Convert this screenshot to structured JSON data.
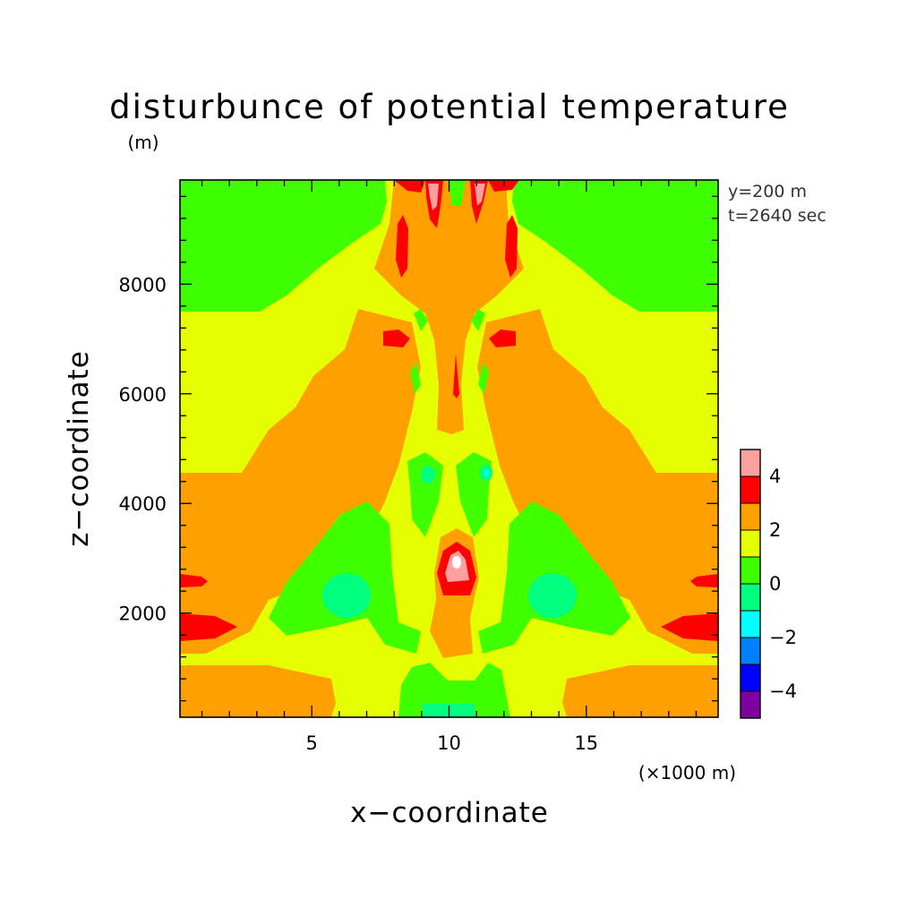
{
  "chart_data": {
    "type": "heatmap",
    "title": "disturbunce of potential temperature",
    "xlabel": "x−coordinate",
    "ylabel": "z−coordinate",
    "x_unit": "(×1000 m)",
    "y_unit": "(m)",
    "xlim": [
      0.2,
      19.8
    ],
    "ylim": [
      100,
      9900
    ],
    "x_ticks": [
      5,
      10,
      15
    ],
    "x_tick_labels": [
      "5",
      "10",
      "15"
    ],
    "y_ticks": [
      2000,
      4000,
      6000,
      8000
    ],
    "y_tick_labels": [
      "2000",
      "4000",
      "6000",
      "8000"
    ],
    "annotations": [
      "y=200 m",
      "t=2640 sec"
    ],
    "colorbar": {
      "levels": [
        -5,
        -4,
        -3,
        -2,
        -1,
        0,
        1,
        2,
        3,
        4,
        5
      ],
      "tick_values": [
        -4,
        -2,
        0,
        2,
        4
      ],
      "tick_labels": [
        "−4",
        "−2",
        "0",
        "2",
        "4"
      ],
      "colors": [
        "#7f00a0",
        "#0000ff",
        "#0080ff",
        "#00ffff",
        "#00ff80",
        "#40ff00",
        "#e6ff00",
        "#ffa000",
        "#ff0000",
        "#ffa0a0"
      ]
    },
    "regions": [
      {
        "name": "upper-left-band",
        "level": 0.5,
        "x": [
          0.2,
          8
        ],
        "z": [
          7500,
          9900
        ]
      },
      {
        "name": "upper-right-band",
        "level": 0.5,
        "x": [
          12,
          19.8
        ],
        "z": [
          7500,
          9900
        ]
      },
      {
        "name": "left-warm-lobe",
        "level": 2.5,
        "x": [
          0.2,
          8
        ],
        "z": [
          1200,
          7100
        ]
      },
      {
        "name": "right-warm-lobe",
        "level": 2.5,
        "x": [
          12,
          19.8
        ],
        "z": [
          1200,
          7100
        ]
      },
      {
        "name": "central-plume",
        "level": 2.5,
        "x": [
          8,
          12
        ],
        "z": [
          5000,
          9900
        ]
      },
      {
        "name": "left-low-cold",
        "level": 0.5,
        "x": [
          3.5,
          9
        ],
        "z": [
          800,
          4800
        ]
      },
      {
        "name": "right-low-cold",
        "level": 0.5,
        "x": [
          11,
          16.5
        ],
        "z": [
          800,
          4800
        ]
      },
      {
        "name": "left-green-core",
        "level": -0.5,
        "x": [
          5,
          7
        ],
        "z": [
          1700,
          2500
        ]
      },
      {
        "name": "right-green-core",
        "level": -0.5,
        "x": [
          13,
          15
        ],
        "z": [
          1700,
          2500
        ]
      },
      {
        "name": "central-hot-core",
        "level": 4.5,
        "x": [
          9.7,
          10.5
        ],
        "z": [
          2700,
          3000
        ]
      },
      {
        "name": "left-edge-hot",
        "level": 3.5,
        "x": [
          0.2,
          2
        ],
        "z": [
          1400,
          2000
        ]
      },
      {
        "name": "right-edge-hot",
        "level": 3.5,
        "x": [
          18,
          19.8
        ],
        "z": [
          1400,
          2000
        ]
      },
      {
        "name": "bottom-band",
        "level": 2.5,
        "x": [
          0.2,
          19.8
        ],
        "z": [
          100,
          1200
        ]
      },
      {
        "name": "top-center-hot",
        "level": 4.5,
        "x": [
          8.5,
          12
        ],
        "z": [
          9200,
          9900
        ]
      }
    ]
  }
}
